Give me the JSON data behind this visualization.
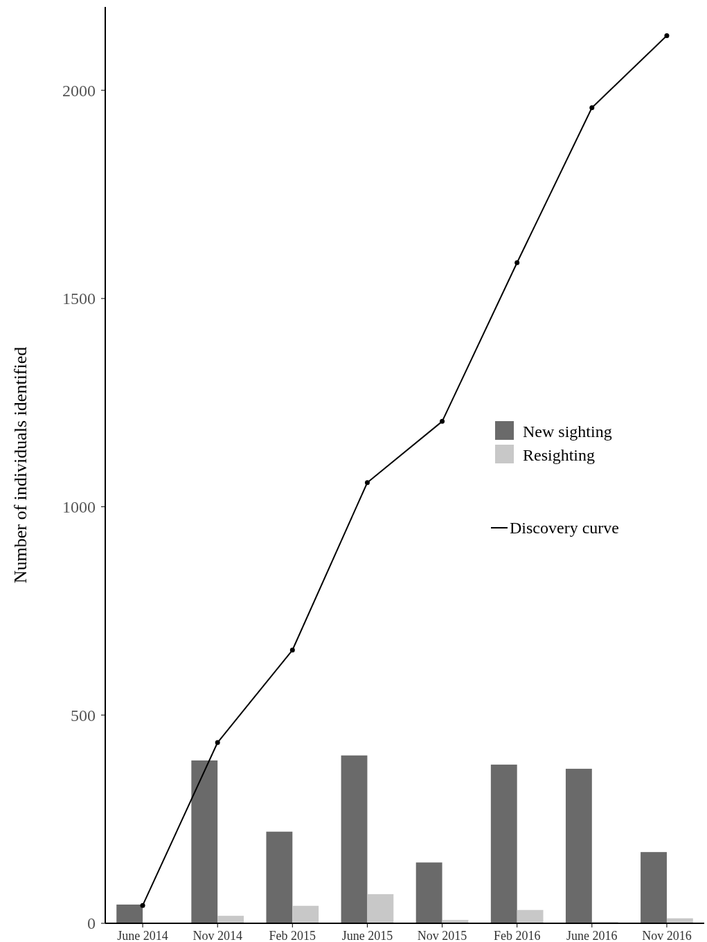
{
  "chart_data": {
    "type": "bar",
    "ylabel": "Number of individuals identified",
    "categories": [
      "June 2014",
      "Nov 2014",
      "Feb 2015",
      "June 2015",
      "Nov 2015",
      "Feb 2016",
      "June 2016",
      "Nov 2016"
    ],
    "series": [
      {
        "name": "New sighting",
        "color": "#6a6a6a",
        "values": [
          45,
          391,
          220,
          403,
          146,
          381,
          371,
          171
        ]
      },
      {
        "name": "Resighting",
        "color": "#c8c8c8",
        "values": [
          0,
          18,
          42,
          70,
          8,
          32,
          3,
          12
        ]
      },
      {
        "name": "Discovery curve",
        "type": "line",
        "color": "#000000",
        "marker": "circle",
        "values": [
          43,
          434,
          656,
          1058,
          1205,
          1586,
          1958,
          2131
        ]
      }
    ],
    "ylim": [
      0,
      2200
    ],
    "yticks": [
      0,
      500,
      1000,
      1500,
      2000
    ],
    "grid": false,
    "legend": "right"
  }
}
